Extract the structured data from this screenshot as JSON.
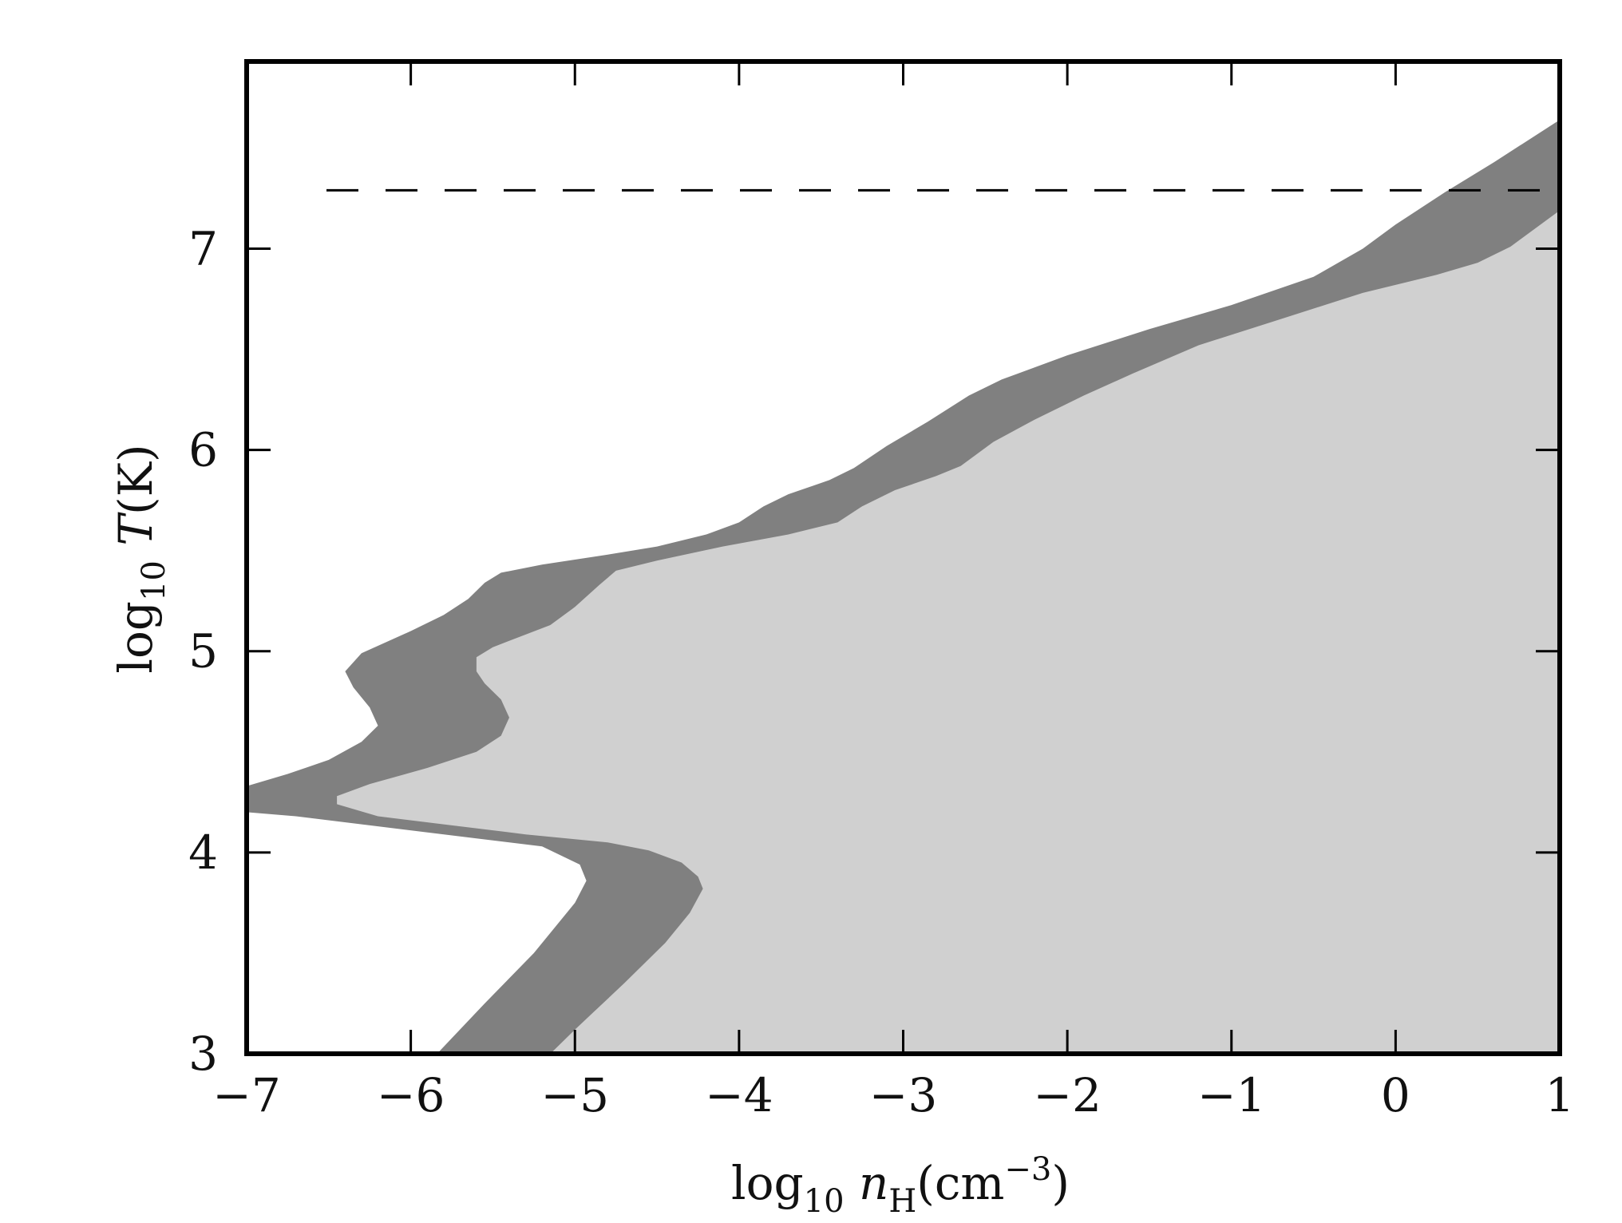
{
  "chart_data": {
    "type": "area",
    "xlabel": {
      "prefix": "log",
      "prefix_sub": "10",
      "var": "n",
      "var_sub": "H",
      "unit": "(cm",
      "unit_sup": "−3",
      "unit_close": ")"
    },
    "ylabel": {
      "prefix": "log",
      "prefix_sub": "10",
      "var": "T",
      "unit": "(K)"
    },
    "xlim": [
      -7,
      1
    ],
    "ylim": [
      3,
      7.93
    ],
    "xticks": [
      -7,
      -6,
      -5,
      -4,
      -3,
      -2,
      -1,
      0,
      1
    ],
    "xtick_labels": [
      "−7",
      "−6",
      "−5",
      "−4",
      "−3",
      "−2",
      "−1",
      "0",
      "1"
    ],
    "yticks": [
      3,
      4,
      5,
      6,
      7
    ],
    "ytick_labels": [
      "3",
      "4",
      "5",
      "6",
      "7"
    ],
    "grid": false,
    "colors": {
      "dark_band": "#808080",
      "light_region": "#d0d0d0",
      "axes": "#000000",
      "reference_line": "#000000"
    },
    "reference_line": {
      "style": "dashed",
      "y": 7.29
    },
    "outer_boundary": [
      [
        -5.84,
        3.0
      ],
      [
        -5.55,
        3.25
      ],
      [
        -5.25,
        3.5
      ],
      [
        -5.0,
        3.75
      ],
      [
        -4.93,
        3.86
      ],
      [
        -4.97,
        3.94
      ],
      [
        -5.2,
        4.03
      ],
      [
        -5.6,
        4.07
      ],
      [
        -6.2,
        4.13
      ],
      [
        -6.7,
        4.18
      ],
      [
        -7.0,
        4.2
      ],
      [
        -7.0,
        4.33
      ],
      [
        -6.75,
        4.39
      ],
      [
        -6.5,
        4.46
      ],
      [
        -6.3,
        4.55
      ],
      [
        -6.2,
        4.63
      ],
      [
        -6.25,
        4.72
      ],
      [
        -6.35,
        4.82
      ],
      [
        -6.4,
        4.9
      ],
      [
        -6.3,
        4.99
      ],
      [
        -6.0,
        5.1
      ],
      [
        -5.8,
        5.18
      ],
      [
        -5.65,
        5.26
      ],
      [
        -5.55,
        5.34
      ],
      [
        -5.45,
        5.39
      ],
      [
        -5.2,
        5.43
      ],
      [
        -4.8,
        5.48
      ],
      [
        -4.5,
        5.52
      ],
      [
        -4.2,
        5.58
      ],
      [
        -4.0,
        5.64
      ],
      [
        -3.85,
        5.72
      ],
      [
        -3.7,
        5.78
      ],
      [
        -3.45,
        5.85
      ],
      [
        -3.3,
        5.91
      ],
      [
        -3.1,
        6.02
      ],
      [
        -2.85,
        6.14
      ],
      [
        -2.6,
        6.27
      ],
      [
        -2.4,
        6.35
      ],
      [
        -2.0,
        6.47
      ],
      [
        -1.5,
        6.6
      ],
      [
        -1.0,
        6.72
      ],
      [
        -0.5,
        6.86
      ],
      [
        -0.2,
        7.0
      ],
      [
        0.0,
        7.12
      ],
      [
        0.3,
        7.28
      ],
      [
        0.6,
        7.43
      ],
      [
        1.0,
        7.64
      ]
    ],
    "inner_boundary": [
      [
        1.0,
        7.19
      ],
      [
        0.7,
        7.01
      ],
      [
        0.5,
        6.93
      ],
      [
        0.25,
        6.87
      ],
      [
        -0.2,
        6.78
      ],
      [
        -0.7,
        6.65
      ],
      [
        -1.2,
        6.52
      ],
      [
        -1.6,
        6.38
      ],
      [
        -1.9,
        6.27
      ],
      [
        -2.2,
        6.15
      ],
      [
        -2.45,
        6.04
      ],
      [
        -2.65,
        5.92
      ],
      [
        -2.8,
        5.87
      ],
      [
        -3.05,
        5.8
      ],
      [
        -3.25,
        5.72
      ],
      [
        -3.4,
        5.64
      ],
      [
        -3.7,
        5.58
      ],
      [
        -4.1,
        5.52
      ],
      [
        -4.5,
        5.45
      ],
      [
        -4.75,
        5.4
      ],
      [
        -4.85,
        5.33
      ],
      [
        -5.0,
        5.22
      ],
      [
        -5.15,
        5.13
      ],
      [
        -5.5,
        5.02
      ],
      [
        -5.6,
        4.97
      ],
      [
        -5.6,
        4.9
      ],
      [
        -5.55,
        4.84
      ],
      [
        -5.45,
        4.76
      ],
      [
        -5.4,
        4.67
      ],
      [
        -5.45,
        4.58
      ],
      [
        -5.6,
        4.5
      ],
      [
        -5.9,
        4.42
      ],
      [
        -6.25,
        4.34
      ],
      [
        -6.45,
        4.28
      ],
      [
        -6.45,
        4.24
      ],
      [
        -6.2,
        4.18
      ],
      [
        -5.8,
        4.14
      ],
      [
        -5.3,
        4.09
      ],
      [
        -4.8,
        4.05
      ],
      [
        -4.55,
        4.01
      ],
      [
        -4.35,
        3.95
      ],
      [
        -4.25,
        3.88
      ],
      [
        -4.22,
        3.82
      ],
      [
        -4.3,
        3.7
      ],
      [
        -4.45,
        3.55
      ],
      [
        -4.7,
        3.35
      ],
      [
        -5.0,
        3.12
      ],
      [
        -5.15,
        3.0
      ]
    ]
  }
}
